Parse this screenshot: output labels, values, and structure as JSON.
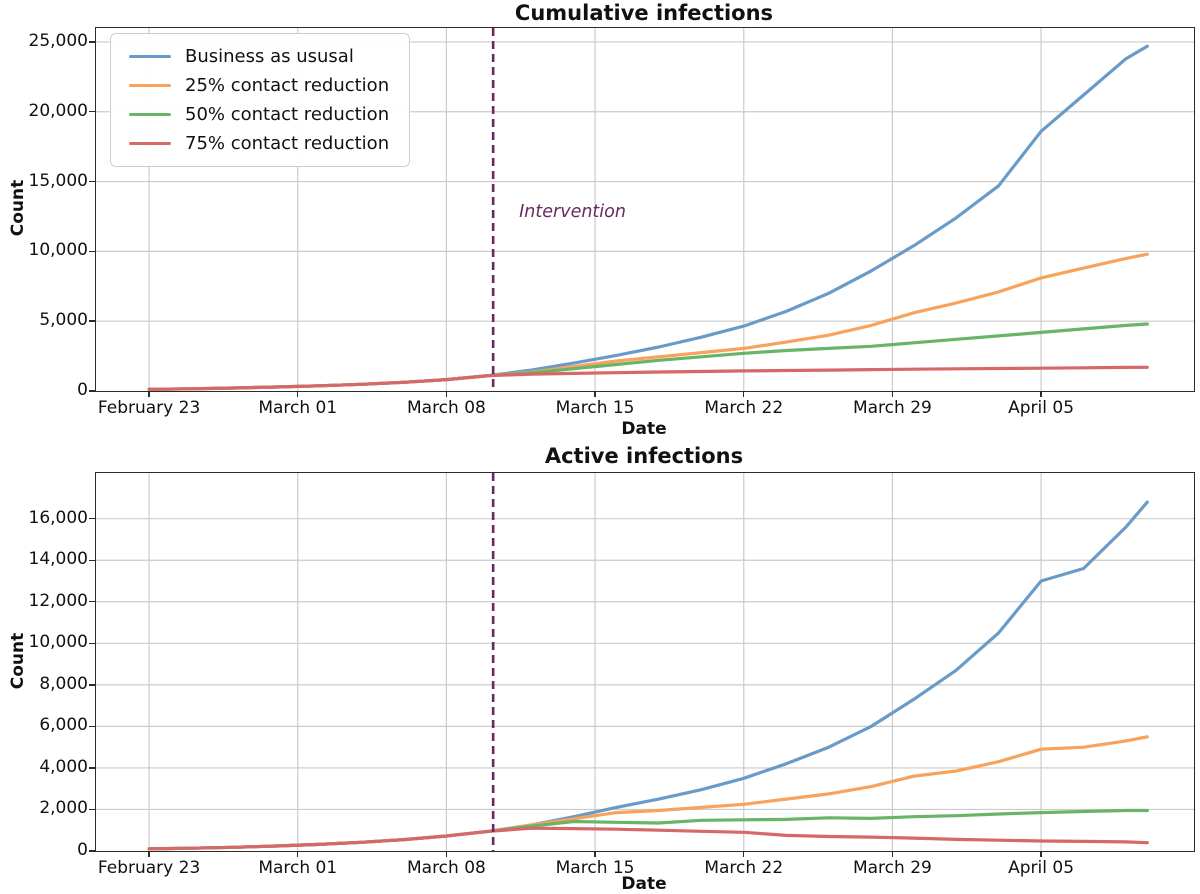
{
  "chart_data": [
    {
      "type": "line",
      "title": "Cumulative infections",
      "xlabel": "Date",
      "ylabel": "Count",
      "x_unit": "days since February 23",
      "x": [
        0,
        2,
        4,
        6,
        8,
        10,
        12,
        14,
        16,
        18,
        20,
        22,
        24,
        26,
        28,
        30,
        32,
        34,
        36,
        38,
        40,
        42,
        44,
        46,
        47
      ],
      "xlim": [
        -2.5,
        49.2
      ],
      "ylim": [
        0,
        26000
      ],
      "xticks": {
        "days": [
          0,
          7,
          14,
          21,
          28,
          35,
          42
        ],
        "labels": [
          "February 23",
          "March 01",
          "March 08",
          "March 15",
          "March 22",
          "March 29",
          "April 05"
        ]
      },
      "yticks": {
        "values": [
          0,
          5000,
          10000,
          15000,
          20000,
          25000
        ],
        "labels": [
          "0",
          "5,000",
          "10,000",
          "15,000",
          "20,000",
          "25,000"
        ]
      },
      "grid": true,
      "grid_color": "#cbcbcb",
      "legend": {
        "position": "upper left",
        "entries": [
          "Business as ususal",
          "25% contact reduction",
          "50% contact reduction",
          "75% contact reduction"
        ]
      },
      "intervention": {
        "day": 16.2,
        "label": "Intervention",
        "color": "#652a60",
        "style": "dashed"
      },
      "series": [
        {
          "name": "Business as ususal",
          "color": "#699bc9",
          "values": [
            120,
            160,
            215,
            285,
            370,
            480,
            620,
            820,
            1100,
            1500,
            2000,
            2550,
            3150,
            3850,
            4650,
            5700,
            7000,
            8600,
            10400,
            12400,
            14700,
            18600,
            21200,
            23800,
            24700
          ]
        },
        {
          "name": "25% contact reduction",
          "color": "#f8a25b",
          "values": [
            120,
            160,
            215,
            285,
            370,
            480,
            620,
            820,
            1100,
            1350,
            1750,
            2150,
            2450,
            2750,
            3050,
            3500,
            4000,
            4700,
            5600,
            6300,
            7100,
            8100,
            8800,
            9500,
            9800
          ]
        },
        {
          "name": "50% contact reduction",
          "color": "#68b468",
          "values": [
            120,
            160,
            215,
            285,
            370,
            480,
            620,
            820,
            1100,
            1300,
            1600,
            1900,
            2200,
            2450,
            2700,
            2900,
            3050,
            3200,
            3450,
            3700,
            3950,
            4200,
            4450,
            4700,
            4800
          ]
        },
        {
          "name": "75% contact reduction",
          "color": "#d66868",
          "values": [
            120,
            160,
            215,
            285,
            370,
            480,
            620,
            820,
            1100,
            1200,
            1260,
            1310,
            1360,
            1400,
            1440,
            1470,
            1500,
            1530,
            1560,
            1590,
            1610,
            1630,
            1660,
            1690,
            1700
          ]
        }
      ]
    },
    {
      "type": "line",
      "title": "Active infections",
      "xlabel": "Date",
      "ylabel": "Count",
      "x_unit": "days since February 23",
      "x": [
        0,
        2,
        4,
        6,
        8,
        10,
        12,
        14,
        16,
        18,
        20,
        22,
        24,
        26,
        28,
        30,
        32,
        34,
        36,
        38,
        40,
        42,
        44,
        46,
        47
      ],
      "xlim": [
        -2.5,
        49.2
      ],
      "ylim": [
        0,
        18200
      ],
      "xticks": {
        "days": [
          0,
          7,
          14,
          21,
          28,
          35,
          42
        ],
        "labels": [
          "February 23",
          "March 01",
          "March 08",
          "March 15",
          "March 22",
          "March 29",
          "April 05"
        ]
      },
      "yticks": {
        "values": [
          0,
          2000,
          4000,
          6000,
          8000,
          10000,
          12000,
          14000,
          16000
        ],
        "labels": [
          "0",
          "2,000",
          "4,000",
          "6,000",
          "8,000",
          "10,000",
          "12,000",
          "14,000",
          "16,000"
        ]
      },
      "grid": true,
      "grid_color": "#cbcbcb",
      "legend": null,
      "intervention": {
        "day": 16.2,
        "label": null,
        "color": "#652a60",
        "style": "dashed"
      },
      "series": [
        {
          "name": "Business as ususal",
          "color": "#699bc9",
          "values": [
            100,
            135,
            180,
            240,
            320,
            420,
            550,
            720,
            950,
            1250,
            1650,
            2100,
            2500,
            2950,
            3500,
            4200,
            5000,
            6000,
            7300,
            8700,
            10500,
            13000,
            13600,
            15600,
            16800
          ]
        },
        {
          "name": "25% contact reduction",
          "color": "#f8a25b",
          "values": [
            100,
            135,
            180,
            240,
            320,
            420,
            550,
            720,
            950,
            1250,
            1550,
            1850,
            1950,
            2100,
            2250,
            2500,
            2750,
            3100,
            3600,
            3850,
            4300,
            4900,
            5000,
            5300,
            5500
          ]
        },
        {
          "name": "50% contact reduction",
          "color": "#68b468",
          "values": [
            100,
            135,
            180,
            240,
            320,
            420,
            550,
            720,
            950,
            1200,
            1420,
            1380,
            1350,
            1480,
            1500,
            1520,
            1600,
            1570,
            1650,
            1700,
            1780,
            1850,
            1900,
            1950,
            1950
          ]
        },
        {
          "name": "75% contact reduction",
          "color": "#d66868",
          "values": [
            100,
            135,
            180,
            240,
            320,
            420,
            550,
            720,
            950,
            1100,
            1080,
            1050,
            1000,
            950,
            900,
            750,
            700,
            670,
            620,
            560,
            520,
            480,
            460,
            440,
            400
          ]
        }
      ]
    }
  ]
}
